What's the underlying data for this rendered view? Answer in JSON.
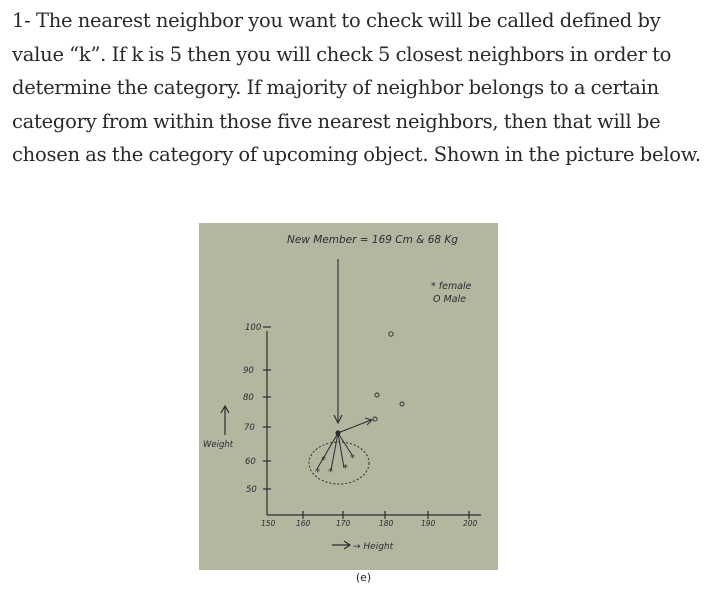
{
  "paragraph": "1- The nearest neighbor you want to check will be called defined by value “k”. If k is 5 then you will check 5 closest neighbors in order to determine the category. If majority of neighbor belongs to a certain category from within those five nearest neighbors, then that will be chosen as the category of upcoming object. Shown in the picture below.",
  "figure": {
    "title": "New Member = 169 Cm & 68 Kg",
    "legend_female": "* female",
    "legend_male": "O Male",
    "y_axis_label": "Weight",
    "x_axis_label": "→ Height",
    "y_ticks": [
      "100",
      "90",
      "80",
      "70",
      "60",
      "50"
    ],
    "x_ticks": [
      "150",
      "160",
      "170",
      "180",
      "190",
      "200"
    ],
    "caption": "(e)",
    "background_color": "#b4b69f",
    "ink_color": "#2b2b35"
  }
}
